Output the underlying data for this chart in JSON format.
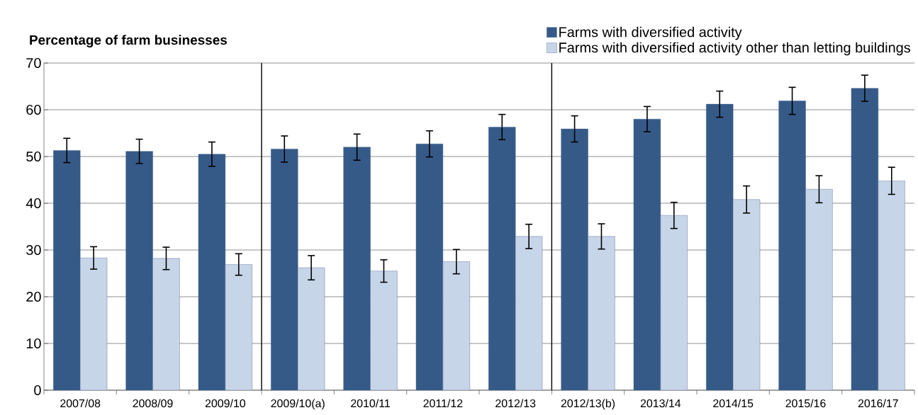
{
  "chart_data": {
    "type": "bar",
    "ylabel": "Percentage of farm businesses",
    "categories": [
      "2007/08",
      "2008/09",
      "2009/10",
      "2009/10(a)",
      "2010/11",
      "2011/12",
      "2012/13",
      "2012/13(b)",
      "2013/14",
      "2014/15",
      "2015/16",
      "2016/17"
    ],
    "series": [
      {
        "name": "Farms with diversified activity",
        "color": "#365a88",
        "values": [
          51.3,
          51.1,
          50.5,
          51.6,
          52.0,
          52.7,
          56.3,
          55.9,
          58.0,
          61.2,
          61.9,
          64.6
        ],
        "errors": [
          2.6,
          2.6,
          2.6,
          2.8,
          2.8,
          2.8,
          2.7,
          2.8,
          2.7,
          2.8,
          2.9,
          2.8
        ]
      },
      {
        "name": "Farms with diversified activity other than letting buildings",
        "color": "#c6d5e8",
        "values": [
          28.3,
          28.2,
          26.9,
          26.2,
          25.5,
          27.5,
          32.9,
          32.9,
          37.4,
          40.8,
          43.0,
          44.8
        ],
        "errors": [
          2.4,
          2.4,
          2.3,
          2.6,
          2.4,
          2.6,
          2.6,
          2.7,
          2.8,
          2.9,
          2.9,
          2.9
        ]
      }
    ],
    "ylim": [
      0,
      70
    ],
    "yticks": [
      0,
      10,
      20,
      30,
      40,
      50,
      60,
      70
    ],
    "grid": "y",
    "legend": "top right"
  }
}
